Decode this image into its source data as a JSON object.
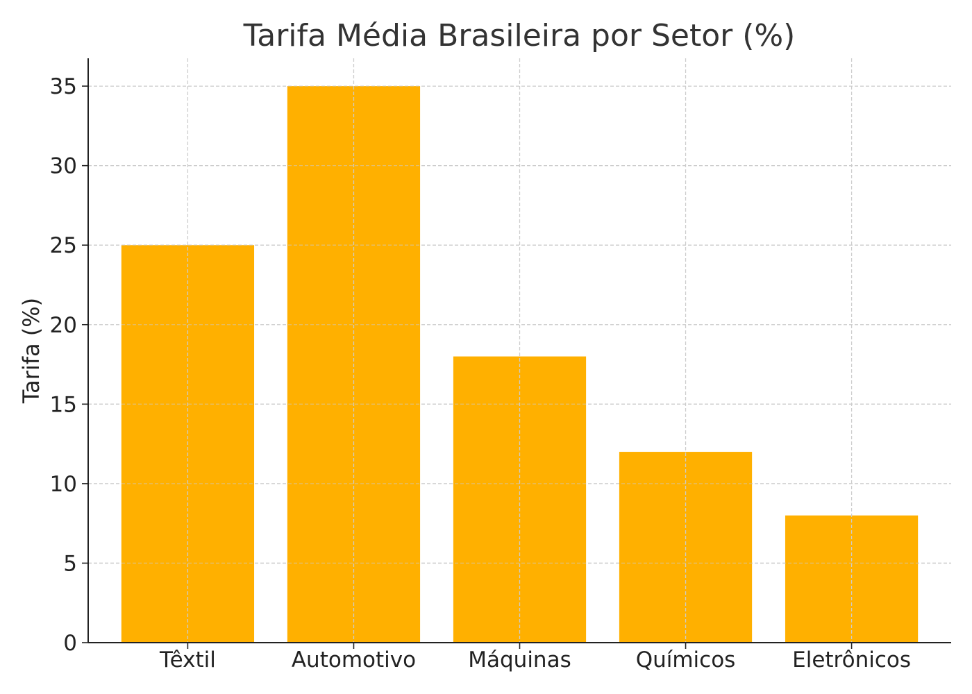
{
  "chart_data": {
    "type": "bar",
    "title": "Tarifa Média Brasileira por Setor (%)",
    "xlabel": "",
    "ylabel": "Tarifa (%)",
    "categories": [
      "Têxtil",
      "Automotivo",
      "Máquinas",
      "Químicos",
      "Eletrônicos"
    ],
    "values": [
      25,
      35,
      18,
      12,
      8
    ],
    "ylim": [
      0,
      36.75
    ],
    "yticks": [
      0,
      5,
      10,
      15,
      20,
      25,
      30,
      35
    ],
    "grid": true,
    "legend": "none",
    "bar_color": "#FFB000",
    "grid_color": "#cccccc",
    "axis_color": "#222222"
  }
}
